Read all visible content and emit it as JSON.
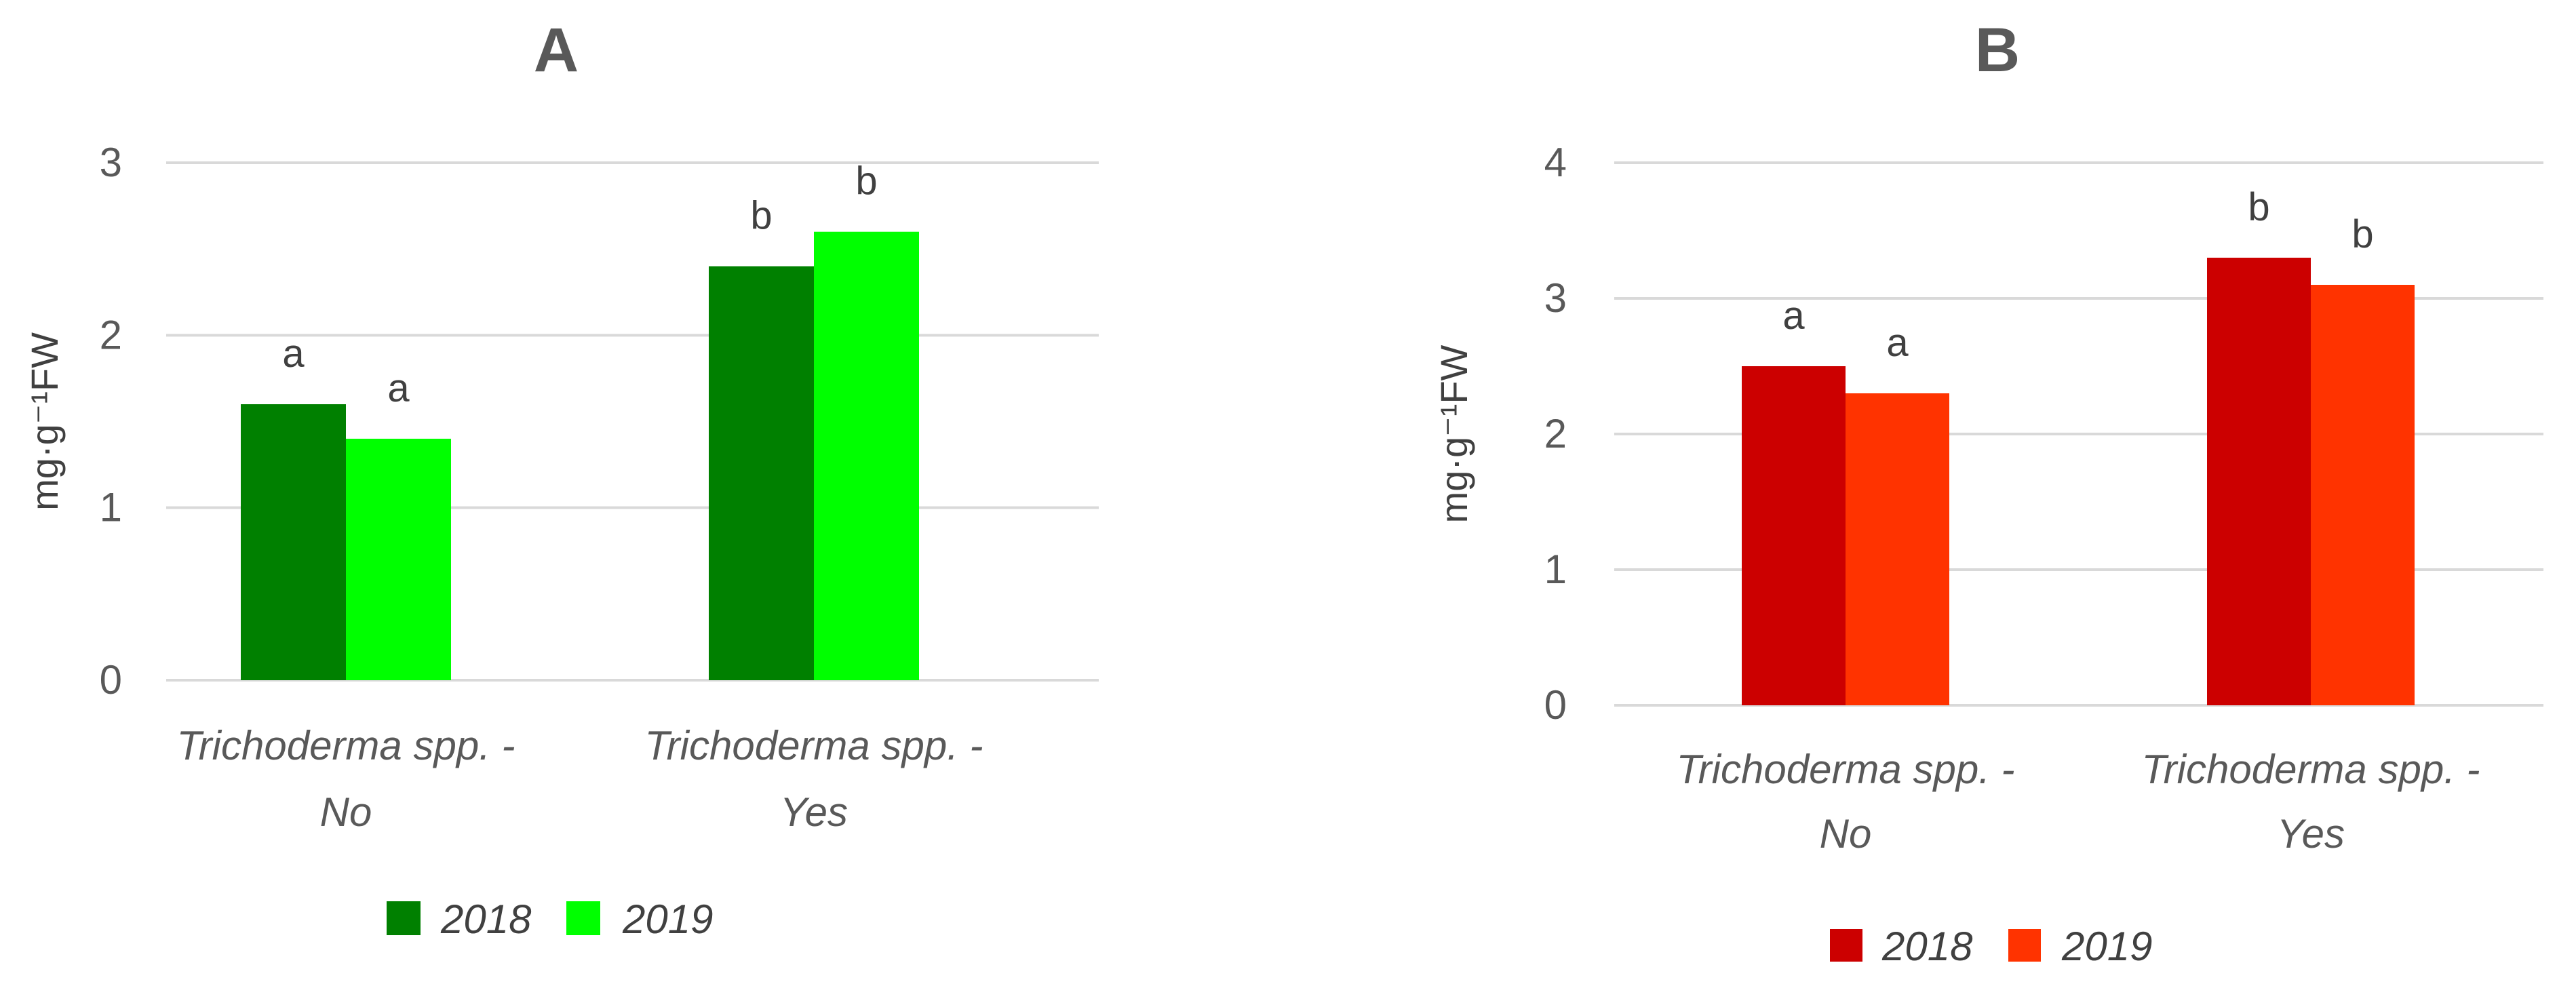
{
  "chart_data": [
    {
      "type": "bar",
      "title": "A",
      "ylabel": "mg·g⁻¹FW",
      "ylim": [
        0,
        3
      ],
      "yticks": [
        0,
        1,
        2,
        3
      ],
      "grid": true,
      "legend_position": "bottom",
      "categories": [
        [
          "Trichoderma spp. -",
          "No"
        ],
        [
          "Trichoderma spp. -",
          "Yes"
        ]
      ],
      "series": [
        {
          "name": "2018",
          "color": "#008000",
          "values": [
            1.6,
            2.4
          ],
          "labels": [
            "a",
            "b"
          ]
        },
        {
          "name": "2019",
          "color": "#00ff00",
          "values": [
            1.4,
            2.6
          ],
          "labels": [
            "a",
            "b"
          ]
        }
      ]
    },
    {
      "type": "bar",
      "title": "B",
      "ylabel": "mg·g⁻¹FW",
      "ylim": [
        0,
        4
      ],
      "yticks": [
        0,
        1,
        2,
        3,
        4
      ],
      "grid": true,
      "legend_position": "bottom",
      "categories": [
        [
          "Trichoderma spp. -",
          "No"
        ],
        [
          "Trichoderma spp. -",
          "Yes"
        ]
      ],
      "series": [
        {
          "name": "2018",
          "color": "#cc0000",
          "values": [
            2.5,
            3.3
          ],
          "labels": [
            "a",
            "b"
          ]
        },
        {
          "name": "2019",
          "color": "#ff3300",
          "values": [
            2.3,
            3.1
          ],
          "labels": [
            "a",
            "b"
          ]
        }
      ]
    }
  ]
}
